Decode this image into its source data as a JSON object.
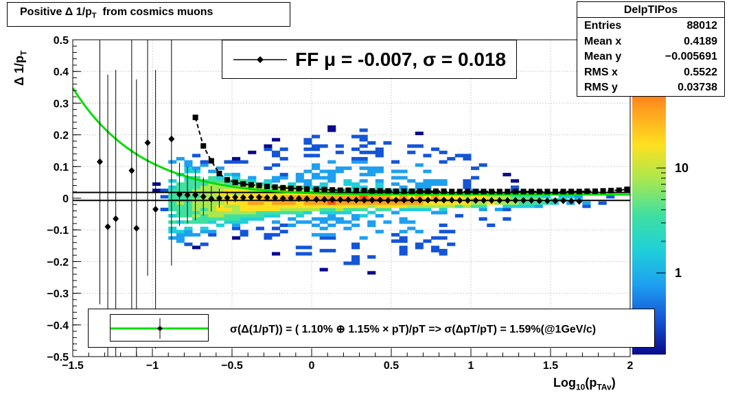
{
  "title": "Positive Δ 1/p",
  "title_sub": "T",
  "title_suffix": "  from cosmics muons",
  "stats": {
    "name": "DelpTIPos",
    "rows": [
      {
        "label": "Entries",
        "value": "88012"
      },
      {
        "label": "Mean x",
        "value": "0.4189"
      },
      {
        "label": "Mean y",
        "value": "−0.005691"
      },
      {
        "label": "RMS x",
        "value": "0.5522"
      },
      {
        "label": "RMS y",
        "value": "0.03738"
      }
    ]
  },
  "fit_label": "FF μ = -0.007, σ =   0.018",
  "legend_label": "σ(Δ(1/pT)) = ( 1.10% ⊕  1.15% × pT)/pT => σ(ΔpT/pT) =  1.59%(@1GeV/c)",
  "axis": {
    "xlabel_main": "Log",
    "xlabel_sub": "10",
    "xlabel_paren": "(p",
    "xlabel_sub2": "TAv",
    "xlabel_end": ")",
    "ylabel_main": "Δ 1/p",
    "ylabel_sub": "T"
  },
  "colors": {
    "fit_curve": "#00dd00",
    "markers": "#000000",
    "palette": [
      "#0a0a8c",
      "#1455d8",
      "#1ea0f0",
      "#20d0d8",
      "#40e0a0",
      "#a8e850",
      "#ffe020",
      "#ffa020",
      "#ff5010",
      "#e02010"
    ]
  },
  "chart_data": {
    "type": "heatmap",
    "xlim": [
      -1.5,
      2
    ],
    "ylim": [
      -0.5,
      0.5
    ],
    "x_ticks": [
      "−1.5",
      "−1",
      "−0.5",
      "0",
      "0.5",
      "1",
      "1.5",
      "2"
    ],
    "x_tick_values": [
      -1.5,
      -1,
      -0.5,
      0,
      0.5,
      1,
      1.5,
      2
    ],
    "y_ticks": [
      "−0.5",
      "−0.4",
      "−0.3",
      "−0.2",
      "−0.1",
      "0",
      "0.1",
      "0.2",
      "0.3",
      "0.4",
      "0.5"
    ],
    "y_tick_values": [
      -0.5,
      -0.4,
      -0.3,
      -0.2,
      -0.1,
      0,
      0.1,
      0.2,
      0.3,
      0.4,
      0.5
    ],
    "z_scale": "log",
    "z_ticks": [
      "1",
      "10"
    ],
    "z_tick_values": [
      1,
      10
    ],
    "grid": true,
    "horizontal_lines": [
      0.018,
      -0.007
    ],
    "mean_points": {
      "x": [
        -1.33,
        -1.28,
        -1.23,
        -1.13,
        -1.1,
        -1.03,
        -0.98,
        -0.88,
        -0.83,
        -0.78,
        -0.73,
        -0.68,
        -0.63,
        -0.58,
        -0.53,
        -0.48,
        -0.43,
        -0.38,
        -0.33,
        -0.28,
        -0.23,
        -0.18,
        -0.13,
        -0.08,
        -0.03,
        0.03,
        0.08,
        0.13,
        0.18,
        0.23,
        0.28,
        0.33,
        0.38,
        0.43,
        0.48,
        0.53,
        0.58,
        0.63,
        0.68,
        0.73,
        0.78,
        0.83,
        0.88,
        0.93,
        0.98,
        1.03,
        1.08,
        1.13,
        1.18,
        1.23,
        1.28,
        1.33,
        1.38,
        1.43,
        1.48,
        1.53,
        1.58,
        1.63,
        1.68
      ],
      "y": [
        0.115,
        -0.09,
        -0.065,
        0.087,
        -0.095,
        0.175,
        -0.035,
        0.187,
        0.012,
        0.01,
        0.01,
        0.005,
        -0.002,
        0.0,
        0.001,
        0.003,
        0.002,
        0.003,
        0.003,
        0.002,
        0.001,
        -0.001,
        0.0,
        -0.001,
        -0.002,
        -0.004,
        -0.004,
        -0.004,
        -0.005,
        -0.005,
        -0.006,
        -0.006,
        -0.006,
        -0.006,
        -0.007,
        -0.006,
        -0.006,
        -0.006,
        -0.006,
        -0.006,
        -0.006,
        -0.006,
        -0.006,
        -0.007,
        -0.007,
        -0.007,
        -0.007,
        -0.007,
        -0.007,
        -0.007,
        -0.007,
        -0.007,
        -0.007,
        -0.008,
        -0.008,
        -0.008,
        -0.008,
        -0.009,
        -0.01
      ],
      "yerr": [
        0.45,
        0.48,
        0.47,
        0.46,
        0.47,
        0.42,
        0.44,
        0.4,
        0.1,
        0.09,
        0.08,
        0.06,
        0.04,
        0.03,
        0.02,
        0.015,
        0.01,
        0.008,
        0.006,
        0.005,
        0.004,
        0.003,
        0.003,
        0.002,
        0.002,
        0.002,
        0.002,
        0.002,
        0.002,
        0.002,
        0.002,
        0.002,
        0.002,
        0.002,
        0.002,
        0.002,
        0.002,
        0.002,
        0.002,
        0.002,
        0.002,
        0.002,
        0.002,
        0.002,
        0.002,
        0.002,
        0.002,
        0.002,
        0.002,
        0.002,
        0.002,
        0.002,
        0.002,
        0.002,
        0.002,
        0.002,
        0.002,
        0.002,
        0.002
      ]
    },
    "rms_points": {
      "x": [
        -0.73,
        -0.68,
        -0.63,
        -0.58,
        -0.53,
        -0.48,
        -0.43,
        -0.38,
        -0.33,
        -0.28,
        -0.23,
        -0.18,
        -0.13,
        -0.08,
        -0.03,
        0.03,
        0.08,
        0.13,
        0.18,
        0.23,
        0.28,
        0.33,
        0.38,
        0.43,
        0.48,
        0.53,
        0.58,
        0.63,
        0.68,
        0.73,
        0.78,
        0.83,
        0.88,
        0.93,
        0.98,
        1.03,
        1.08,
        1.13,
        1.18,
        1.23,
        1.28,
        1.33,
        1.38,
        1.43,
        1.48,
        1.53,
        1.58,
        1.63,
        1.68,
        1.73,
        1.78,
        1.83,
        1.88,
        1.93,
        1.98
      ],
      "y": [
        0.255,
        0.165,
        0.118,
        0.078,
        0.058,
        0.05,
        0.045,
        0.042,
        0.04,
        0.037,
        0.035,
        0.033,
        0.031,
        0.03,
        0.029,
        0.028,
        0.027,
        0.026,
        0.025,
        0.025,
        0.024,
        0.024,
        0.023,
        0.023,
        0.023,
        0.022,
        0.022,
        0.022,
        0.022,
        0.022,
        0.022,
        0.022,
        0.021,
        0.021,
        0.021,
        0.021,
        0.021,
        0.021,
        0.021,
        0.021,
        0.021,
        0.021,
        0.021,
        0.021,
        0.021,
        0.021,
        0.021,
        0.021,
        0.021,
        0.022,
        0.022,
        0.023,
        0.024,
        0.025,
        0.028
      ]
    },
    "fit_curve": {
      "formula": "sqrt(0.0110^2 + (0.0115*pT)^2)/pT",
      "a": 0.011,
      "b": 0.0115
    }
  }
}
